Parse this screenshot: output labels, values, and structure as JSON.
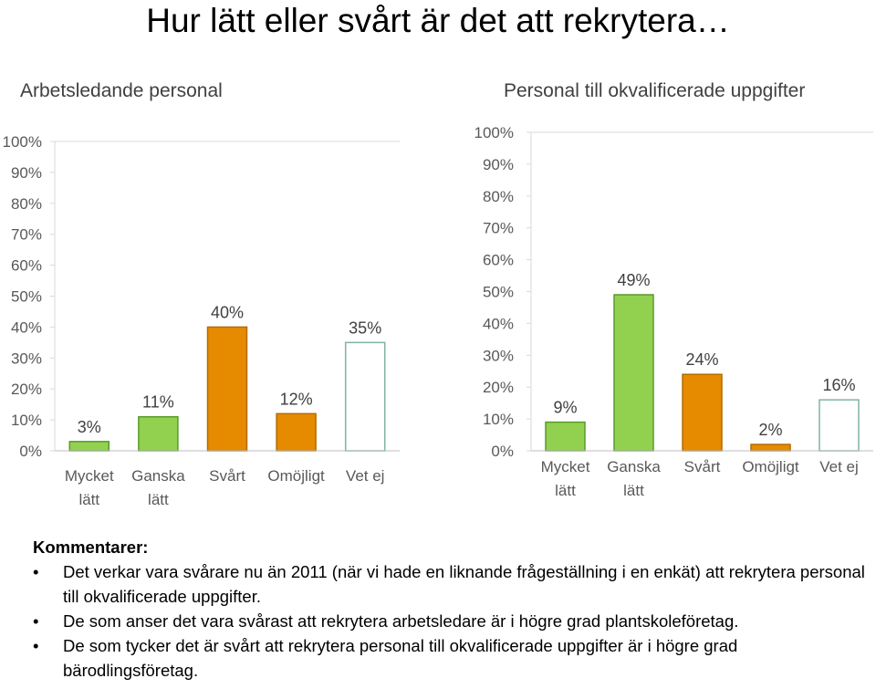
{
  "slide": {
    "title": "Hur lätt eller svårt är det att rekrytera…"
  },
  "chart_data": [
    {
      "type": "bar",
      "title": "Arbetsledande personal",
      "categories": [
        [
          "Mycket",
          "lätt"
        ],
        [
          "Ganska",
          "lätt"
        ],
        [
          "Svårt"
        ],
        [
          "Omöjligt"
        ],
        [
          "Vet ej"
        ]
      ],
      "values": [
        3,
        11,
        40,
        12,
        35
      ],
      "data_labels": [
        "3%",
        "11%",
        "40%",
        "12%",
        "35%"
      ],
      "ylim": [
        0,
        100
      ],
      "yticks": [
        "0%",
        "10%",
        "20%",
        "30%",
        "40%",
        "50%",
        "60%",
        "70%",
        "80%",
        "90%",
        "100%"
      ],
      "bar_colors": [
        "#92d050",
        "#92d050",
        "#e68a00",
        "#e68a00",
        "#ffffff"
      ],
      "grid": false
    },
    {
      "type": "bar",
      "title": "Personal till okvalificerade uppgifter",
      "categories": [
        [
          "Mycket",
          "lätt"
        ],
        [
          "Ganska",
          "lätt"
        ],
        [
          "Svårt"
        ],
        [
          "Omöjligt"
        ],
        [
          "Vet ej"
        ]
      ],
      "values": [
        9,
        49,
        24,
        2,
        16
      ],
      "data_labels": [
        "9%",
        "49%",
        "24%",
        "2%",
        "16%"
      ],
      "ylim": [
        0,
        100
      ],
      "yticks": [
        "0%",
        "10%",
        "20%",
        "30%",
        "40%",
        "50%",
        "60%",
        "70%",
        "80%",
        "90%",
        "100%"
      ],
      "bar_colors": [
        "#92d050",
        "#92d050",
        "#e68a00",
        "#e68a00",
        "#ffffff"
      ],
      "grid": false
    }
  ],
  "comments": {
    "heading": "Kommentarer:",
    "bullet_char": "•",
    "items": [
      "Det verkar vara svårare nu än 2011 (när vi hade en liknande frågeställning i en enkät) att rekrytera personal till okvalificerade uppgifter.",
      "De som anser det vara svårast att rekrytera arbetsledare är i högre grad plantskoleföretag.",
      "De som tycker det är svårt att rekrytera personal till okvalificerade uppgifter är i högre grad bärodlingsföretag."
    ]
  },
  "colors": {
    "green": "#92d050",
    "orange": "#e68a00",
    "outline_green": "#5a9a2a",
    "outline_orange": "#b36b00",
    "outline_white": "#7fb3a6"
  }
}
